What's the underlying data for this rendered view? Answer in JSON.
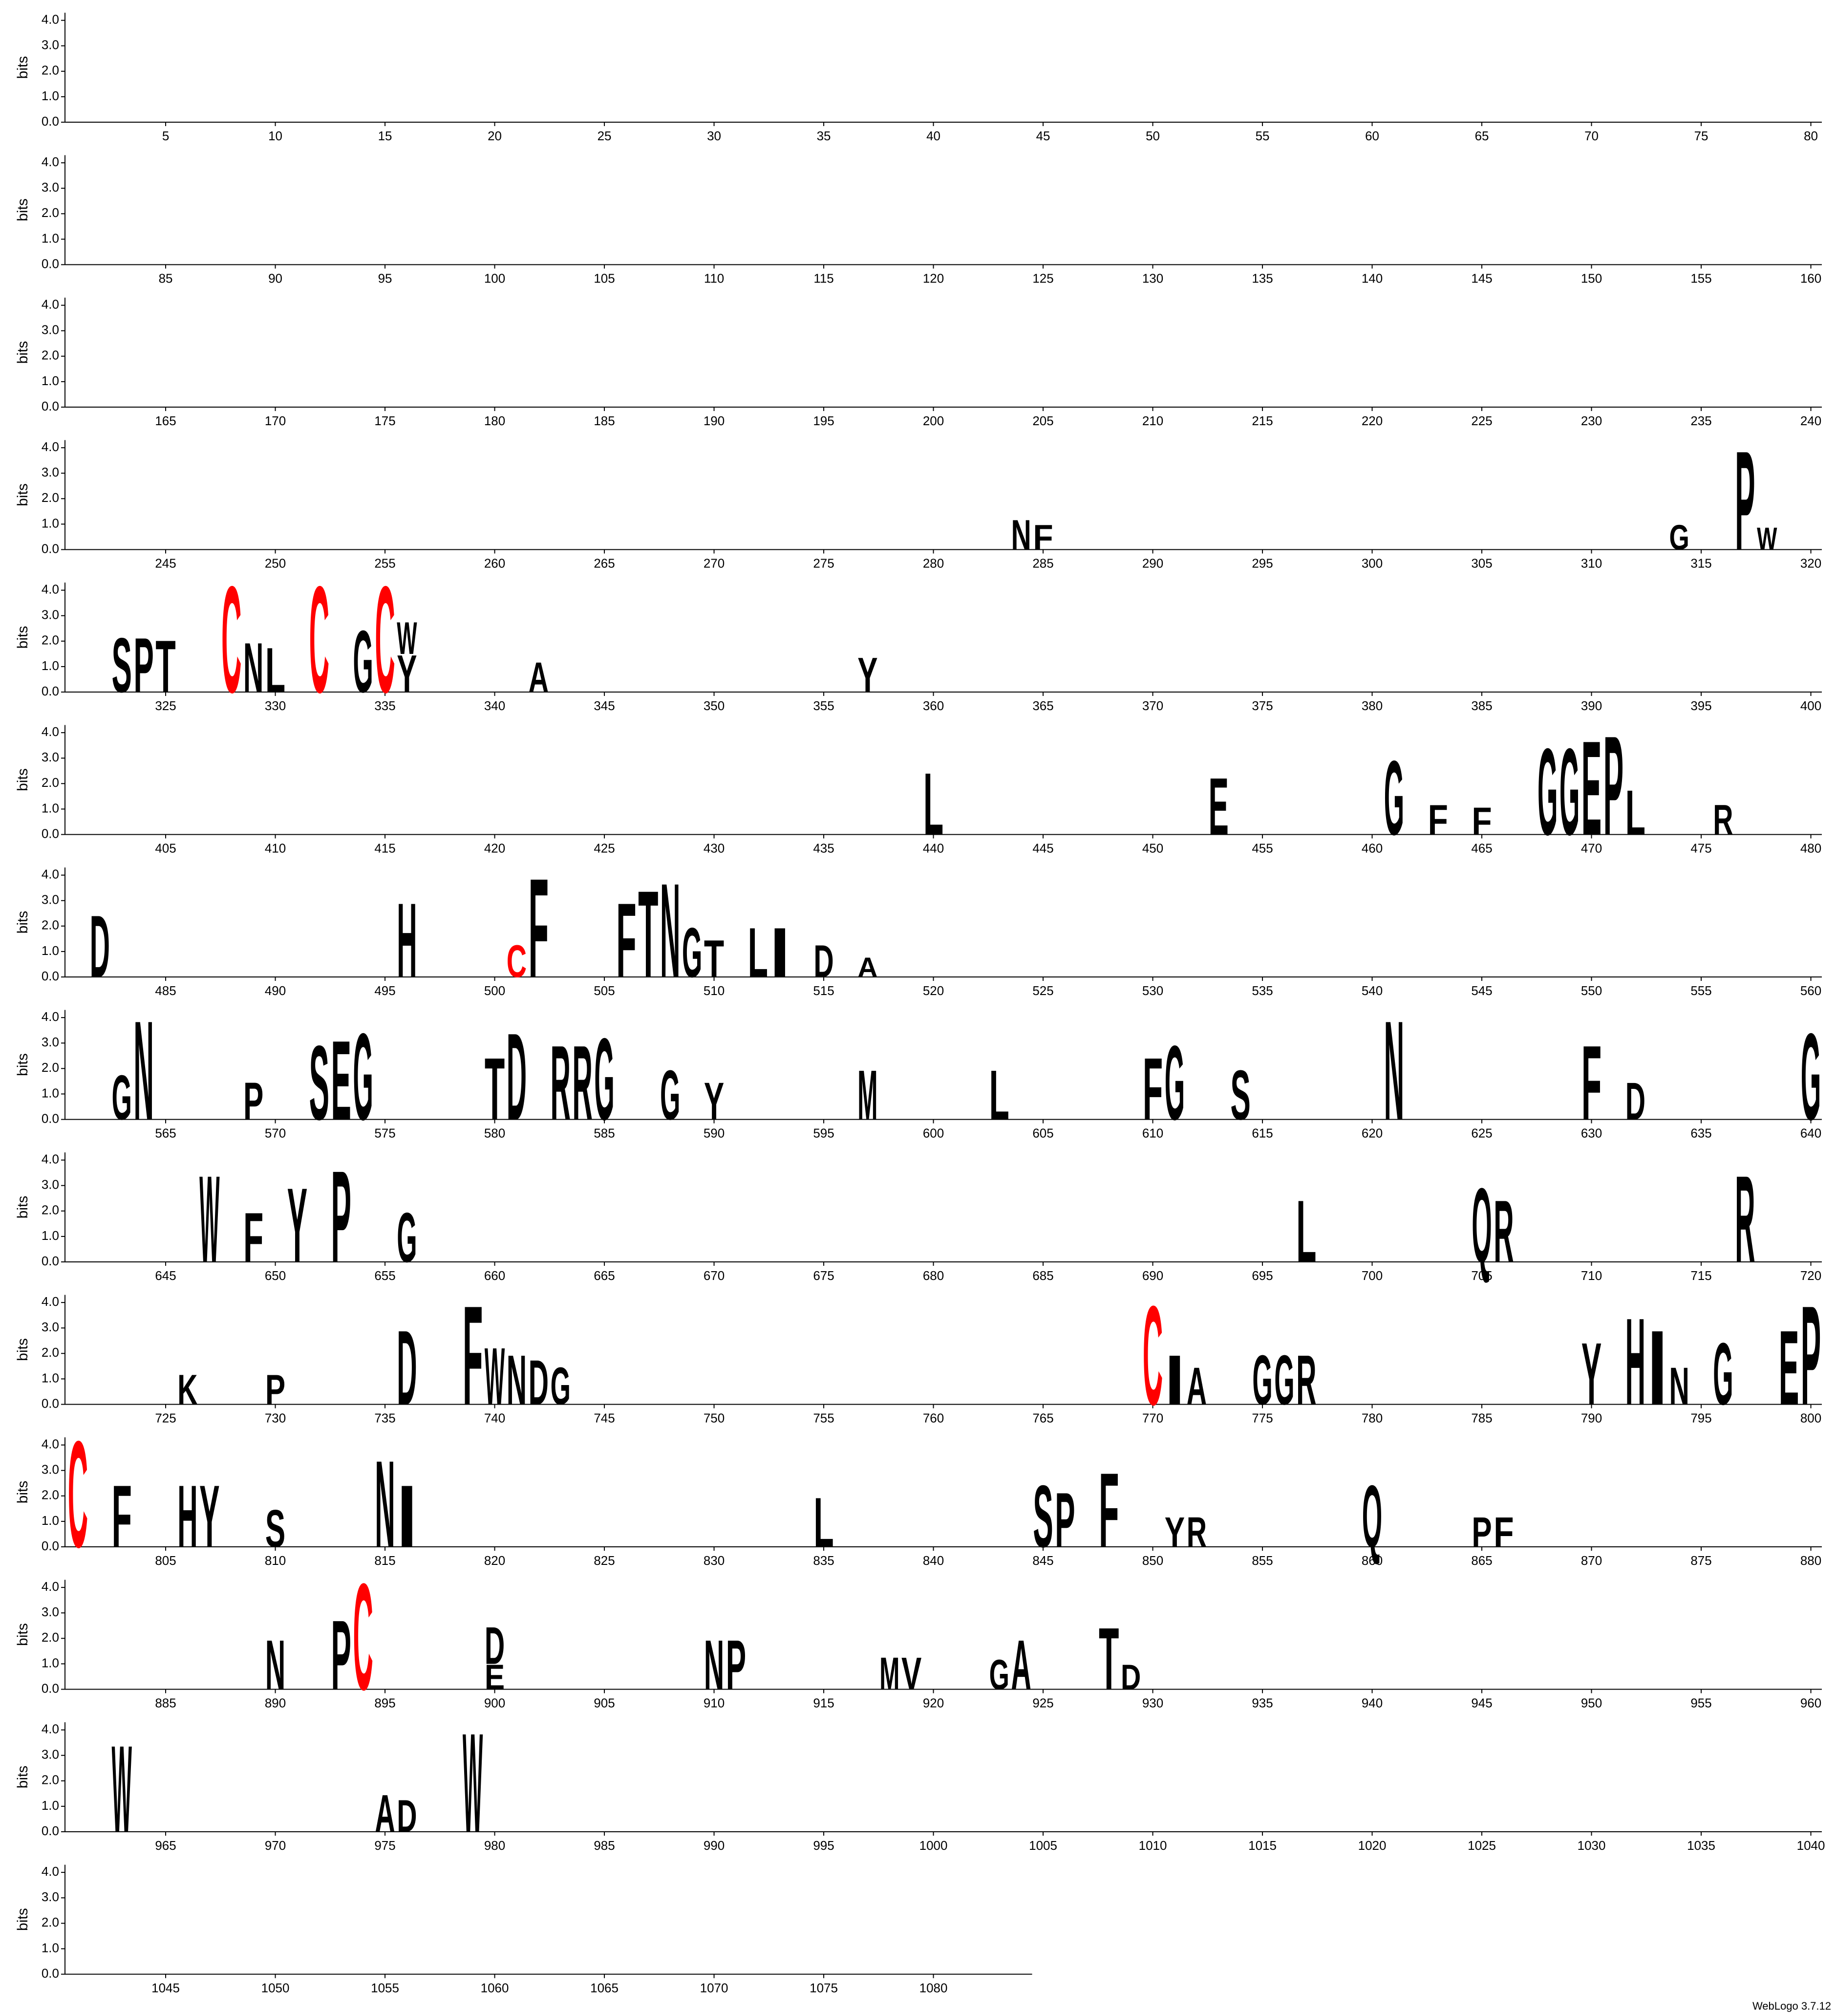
{
  "chart_data": {
    "type": "logo",
    "ylabel": "bits",
    "ylim": [
      0,
      4.3
    ],
    "yticks": [
      {
        "value": 0,
        "label": "0.0"
      },
      {
        "value": 1,
        "label": "1.0"
      },
      {
        "value": 2,
        "label": "2.0"
      },
      {
        "value": 3,
        "label": "3.0"
      },
      {
        "value": 4,
        "label": "4.0"
      }
    ],
    "xlim": [
      1,
      1084
    ],
    "xticks": [
      5,
      10,
      15,
      20,
      25,
      30,
      35,
      40,
      45,
      50,
      55,
      60,
      65,
      70,
      75,
      80,
      85,
      90,
      95,
      100,
      105,
      110,
      115,
      120,
      125,
      130,
      135,
      140,
      145,
      150,
      155,
      160,
      165,
      170,
      175,
      180,
      185,
      190,
      195,
      200,
      205,
      210,
      215,
      220,
      225,
      230,
      235,
      240,
      245,
      250,
      255,
      260,
      265,
      270,
      275,
      280,
      285,
      290,
      295,
      300,
      305,
      310,
      315,
      320,
      325,
      330,
      335,
      340,
      345,
      350,
      355,
      360,
      365,
      370,
      375,
      380,
      385,
      390,
      395,
      400,
      405,
      410,
      415,
      420,
      425,
      430,
      435,
      440,
      445,
      450,
      455,
      460,
      465,
      470,
      475,
      480,
      485,
      490,
      495,
      500,
      505,
      510,
      515,
      520,
      525,
      530,
      535,
      540,
      545,
      550,
      555,
      560,
      565,
      570,
      575,
      580,
      585,
      590,
      595,
      600,
      605,
      610,
      615,
      620,
      625,
      630,
      635,
      640,
      645,
      650,
      655,
      660,
      665,
      670,
      675,
      680,
      685,
      690,
      695,
      700,
      705,
      710,
      715,
      720,
      725,
      730,
      735,
      740,
      745,
      750,
      755,
      760,
      765,
      770,
      775,
      780,
      785,
      790,
      795,
      800,
      805,
      810,
      815,
      820,
      825,
      830,
      835,
      840,
      845,
      850,
      855,
      860,
      865,
      870,
      875,
      880,
      885,
      890,
      895,
      900,
      905,
      910,
      915,
      920,
      925,
      930,
      935,
      940,
      945,
      950,
      955,
      960,
      965,
      970,
      975,
      980,
      985,
      990,
      995,
      1000,
      1005,
      1010,
      1015,
      1020,
      1025,
      1030,
      1035,
      1040,
      1045,
      1050,
      1055,
      1060,
      1065,
      1070,
      1075,
      1080
    ],
    "color": "#000000",
    "highlight_color": "#ff0000",
    "highlight_letters": [
      "C"
    ],
    "symbols": [
      {
        "x": 284,
        "text": "N",
        "value": 1.2
      },
      {
        "x": 285,
        "text": "F",
        "value": 1.0
      },
      {
        "x": 314,
        "text": "G",
        "value": 1.0
      },
      {
        "x": 317,
        "text": "P",
        "value": 4.0
      },
      {
        "x": 318,
        "text": "W",
        "value": 0.9
      },
      {
        "x": 323,
        "text": "S",
        "value": 2.2
      },
      {
        "x": 324,
        "text": "P",
        "value": 2.2
      },
      {
        "x": 325,
        "text": "T",
        "value": 2.1
      },
      {
        "x": 328,
        "text": "C",
        "value": 4.3
      },
      {
        "x": 329,
        "text": "N",
        "value": 2.0
      },
      {
        "x": 330,
        "text": "L",
        "value": 1.8
      },
      {
        "x": 332,
        "text": "C",
        "value": 4.3
      },
      {
        "x": 334,
        "text": "G",
        "value": 2.5
      },
      {
        "x": 335,
        "text": "C",
        "value": 4.3
      },
      {
        "x": 336,
        "text": "Y",
        "value": 1.5
      },
      {
        "x": 336,
        "text": "W",
        "value": 1.3
      },
      {
        "x": 342,
        "text": "A",
        "value": 1.2
      },
      {
        "x": 357,
        "text": "Y",
        "value": 1.4
      },
      {
        "x": 440,
        "text": "L",
        "value": 2.5
      },
      {
        "x": 453,
        "text": "E",
        "value": 2.3
      },
      {
        "x": 461,
        "text": "G",
        "value": 3.0
      },
      {
        "x": 463,
        "text": "F",
        "value": 1.2
      },
      {
        "x": 465,
        "text": "F",
        "value": 1.1
      },
      {
        "x": 468,
        "text": "G",
        "value": 3.5
      },
      {
        "x": 469,
        "text": "G",
        "value": 3.5
      },
      {
        "x": 470,
        "text": "E",
        "value": 3.8
      },
      {
        "x": 471,
        "text": "P",
        "value": 4.0
      },
      {
        "x": 472,
        "text": "L",
        "value": 1.8
      },
      {
        "x": 476,
        "text": "R",
        "value": 1.2
      },
      {
        "x": 482,
        "text": "D",
        "value": 2.5
      },
      {
        "x": 496,
        "text": "H",
        "value": 3.0
      },
      {
        "x": 501,
        "text": "C",
        "value": 1.3
      },
      {
        "x": 502,
        "text": "F",
        "value": 4.0
      },
      {
        "x": 506,
        "text": "F",
        "value": 3.0
      },
      {
        "x": 507,
        "text": "T",
        "value": 3.5
      },
      {
        "x": 508,
        "text": "N",
        "value": 3.8
      },
      {
        "x": 509,
        "text": "G",
        "value": 2.0
      },
      {
        "x": 510,
        "text": "T",
        "value": 1.5
      },
      {
        "x": 512,
        "text": "L",
        "value": 2.0
      },
      {
        "x": 513,
        "text": "I",
        "value": 2.0
      },
      {
        "x": 515,
        "text": "D",
        "value": 1.3
      },
      {
        "x": 517,
        "text": "A",
        "value": 0.8
      },
      {
        "x": 563,
        "text": "G",
        "value": 1.8
      },
      {
        "x": 564,
        "text": "N",
        "value": 4.0
      },
      {
        "x": 569,
        "text": "P",
        "value": 1.5
      },
      {
        "x": 572,
        "text": "S",
        "value": 3.0
      },
      {
        "x": 573,
        "text": "E",
        "value": 3.2
      },
      {
        "x": 574,
        "text": "G",
        "value": 3.5
      },
      {
        "x": 580,
        "text": "T",
        "value": 2.5
      },
      {
        "x": 581,
        "text": "D",
        "value": 3.5
      },
      {
        "x": 583,
        "text": "R",
        "value": 3.0
      },
      {
        "x": 584,
        "text": "R",
        "value": 3.0
      },
      {
        "x": 585,
        "text": "G",
        "value": 3.3
      },
      {
        "x": 588,
        "text": "G",
        "value": 2.0
      },
      {
        "x": 590,
        "text": "Y",
        "value": 1.5
      },
      {
        "x": 597,
        "text": "M",
        "value": 2.0
      },
      {
        "x": 603,
        "text": "L",
        "value": 2.0
      },
      {
        "x": 610,
        "text": "F",
        "value": 2.5
      },
      {
        "x": 611,
        "text": "G",
        "value": 3.0
      },
      {
        "x": 614,
        "text": "S",
        "value": 2.0
      },
      {
        "x": 621,
        "text": "N",
        "value": 4.0
      },
      {
        "x": 630,
        "text": "F",
        "value": 3.0
      },
      {
        "x": 632,
        "text": "D",
        "value": 1.5
      },
      {
        "x": 640,
        "text": "G",
        "value": 3.5
      },
      {
        "x": 647,
        "text": "W",
        "value": 3.5
      },
      {
        "x": 649,
        "text": "F",
        "value": 2.0
      },
      {
        "x": 651,
        "text": "Y",
        "value": 3.0
      },
      {
        "x": 653,
        "text": "P",
        "value": 3.7
      },
      {
        "x": 656,
        "text": "G",
        "value": 2.0
      },
      {
        "x": 697,
        "text": "L",
        "value": 2.5
      },
      {
        "x": 705,
        "text": "Q",
        "value": 3.0
      },
      {
        "x": 706,
        "text": "R",
        "value": 2.5
      },
      {
        "x": 717,
        "text": "R",
        "value": 3.5
      },
      {
        "x": 726,
        "text": "K",
        "value": 1.2
      },
      {
        "x": 730,
        "text": "P",
        "value": 1.2
      },
      {
        "x": 736,
        "text": "D",
        "value": 3.0
      },
      {
        "x": 739,
        "text": "F",
        "value": 4.0
      },
      {
        "x": 740,
        "text": "W",
        "value": 2.3
      },
      {
        "x": 741,
        "text": "N",
        "value": 2.0
      },
      {
        "x": 742,
        "text": "D",
        "value": 1.8
      },
      {
        "x": 743,
        "text": "G",
        "value": 1.5
      },
      {
        "x": 770,
        "text": "C",
        "value": 4.0
      },
      {
        "x": 771,
        "text": "I",
        "value": 2.0
      },
      {
        "x": 772,
        "text": "A",
        "value": 1.5
      },
      {
        "x": 775,
        "text": "G",
        "value": 2.0
      },
      {
        "x": 776,
        "text": "G",
        "value": 2.0
      },
      {
        "x": 777,
        "text": "R",
        "value": 2.0
      },
      {
        "x": 790,
        "text": "Y",
        "value": 2.5
      },
      {
        "x": 792,
        "text": "H",
        "value": 3.5
      },
      {
        "x": 793,
        "text": "I",
        "value": 3.0
      },
      {
        "x": 794,
        "text": "N",
        "value": 1.5
      },
      {
        "x": 796,
        "text": "G",
        "value": 2.5
      },
      {
        "x": 799,
        "text": "E",
        "value": 3.0
      },
      {
        "x": 800,
        "text": "P",
        "value": 4.0
      },
      {
        "x": 801,
        "text": "C",
        "value": 4.3
      },
      {
        "x": 803,
        "text": "F",
        "value": 2.5
      },
      {
        "x": 806,
        "text": "H",
        "value": 2.5
      },
      {
        "x": 807,
        "text": "Y",
        "value": 2.5
      },
      {
        "x": 810,
        "text": "S",
        "value": 1.5
      },
      {
        "x": 815,
        "text": "N",
        "value": 3.5
      },
      {
        "x": 816,
        "text": "I",
        "value": 2.5
      },
      {
        "x": 835,
        "text": "L",
        "value": 2.0
      },
      {
        "x": 845,
        "text": "S",
        "value": 2.5
      },
      {
        "x": 846,
        "text": "P",
        "value": 2.2
      },
      {
        "x": 848,
        "text": "F",
        "value": 3.0
      },
      {
        "x": 851,
        "text": "Y",
        "value": 1.2
      },
      {
        "x": 852,
        "text": "R",
        "value": 1.2
      },
      {
        "x": 860,
        "text": "Q",
        "value": 2.5
      },
      {
        "x": 865,
        "text": "P",
        "value": 1.2
      },
      {
        "x": 866,
        "text": "F",
        "value": 1.2
      },
      {
        "x": 890,
        "text": "N",
        "value": 2.0
      },
      {
        "x": 893,
        "text": "P",
        "value": 2.8
      },
      {
        "x": 894,
        "text": "C",
        "value": 4.3
      },
      {
        "x": 900,
        "text": "E",
        "value": 1.0
      },
      {
        "x": 900,
        "text": "D",
        "value": 1.5
      },
      {
        "x": 910,
        "text": "N",
        "value": 2.0
      },
      {
        "x": 911,
        "text": "P",
        "value": 2.0
      },
      {
        "x": 918,
        "text": "M",
        "value": 1.3
      },
      {
        "x": 919,
        "text": "V",
        "value": 1.3
      },
      {
        "x": 923,
        "text": "G",
        "value": 1.2
      },
      {
        "x": 924,
        "text": "A",
        "value": 2.0
      },
      {
        "x": 928,
        "text": "T",
        "value": 2.5
      },
      {
        "x": 929,
        "text": "D",
        "value": 1.0
      },
      {
        "x": 963,
        "text": "W",
        "value": 3.5
      },
      {
        "x": 975,
        "text": "A",
        "value": 1.5
      },
      {
        "x": 976,
        "text": "D",
        "value": 1.3
      },
      {
        "x": 979,
        "text": "W",
        "value": 4.0
      }
    ],
    "credit": "WebLogo 3.7.12"
  }
}
